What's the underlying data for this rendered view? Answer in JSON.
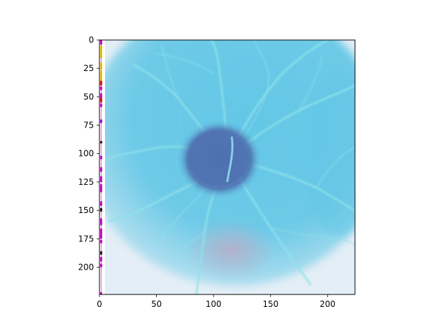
{
  "chart_data": {
    "type": "heatmap",
    "title": "",
    "xlabel": "",
    "ylabel": "",
    "xlim": [
      0,
      224
    ],
    "ylim": [
      224,
      0
    ],
    "x_ticks": [
      0,
      50,
      100,
      150,
      200
    ],
    "y_ticks": [
      0,
      25,
      50,
      75,
      100,
      125,
      150,
      175,
      200
    ],
    "x_tick_labels": [
      "0",
      "50",
      "100",
      "150",
      "200"
    ],
    "y_tick_labels": [
      "0",
      "25",
      "50",
      "75",
      "100",
      "125",
      "150",
      "175",
      "200"
    ],
    "image": {
      "subject": "inverted-color retinal fundus photograph",
      "background_color": "#c8e6f2",
      "field_color": "#63c7e6",
      "rim_color": "#e4eef6",
      "optic_disc_color": "#4f6faf",
      "lower_shadow_color": "#b8aec8",
      "vessel_color": "#8fe2ea",
      "edge_artifact_colors": [
        "#cc00cc",
        "#ffee00",
        "#e80000",
        "#8800ff",
        "#000000"
      ]
    },
    "grid": false,
    "legend": "none"
  }
}
